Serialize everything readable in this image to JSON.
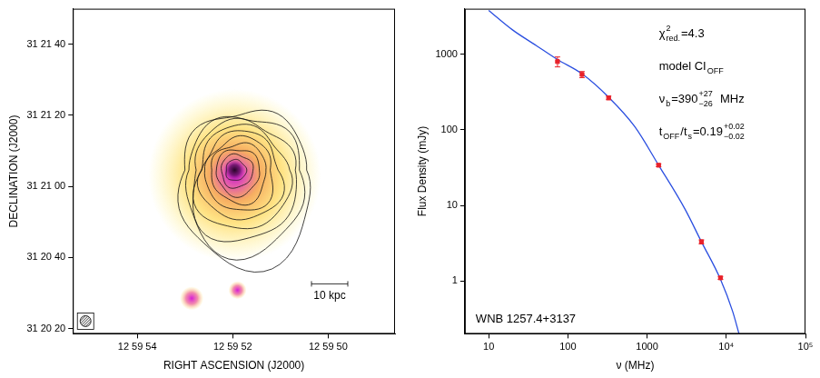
{
  "chart_data": [
    {
      "type": "image",
      "xlabel": "RIGHT ASCENSION (J2000)",
      "ylabel": "DECLINATION (J2000)",
      "xlim": [
        55.35,
        48.6
      ],
      "ylim": [
        18.5,
        110
      ],
      "xticks": [
        {
          "value": 54,
          "label": "12 59 54"
        },
        {
          "value": 52,
          "label": "12 59 52"
        },
        {
          "value": 50,
          "label": "12 59 50"
        }
      ],
      "yticks": [
        {
          "value": 20,
          "label": "31 20 20"
        },
        {
          "value": 40,
          "label": "31 20 40"
        },
        {
          "value": 60,
          "label": "31 21 00"
        },
        {
          "value": 80,
          "label": "31 21 20"
        },
        {
          "value": 100,
          "label": "31 21 40"
        }
      ],
      "sources": [
        {
          "x": 51.96,
          "y": 64.6
        },
        {
          "x": 52.86,
          "y": 28.5
        },
        {
          "x": 51.9,
          "y": 30.8
        }
      ],
      "scale_bar": "10 kpc"
    },
    {
      "type": "line",
      "log": true,
      "grid": false,
      "xlabel": "ν (MHz)",
      "ylabel": "Flux Density (mJy)",
      "xlim": [
        5,
        100000
      ],
      "ylim": [
        0.2,
        4000
      ],
      "xticks": [
        10,
        100,
        1000,
        {
          "value": 10000,
          "label": "10⁴"
        },
        {
          "value": 100000,
          "label": "10⁵"
        }
      ],
      "yticks": [
        1,
        10,
        100,
        1000
      ],
      "series": [
        {
          "type": "scatter",
          "marker": "square",
          "color": "#e8222a",
          "x": [
            74,
            151,
            327,
            1400,
            4860,
            8460
          ],
          "values": [
            800,
            540,
            265,
            34,
            3.3,
            1.1
          ],
          "errors": [
            120,
            50,
            15,
            1.5,
            0.2,
            0.05
          ]
        },
        {
          "type": "line",
          "line_style": "solid",
          "color": "#2b4fe0",
          "x": [
            10,
            20,
            40,
            74,
            151,
            327,
            700,
            1400,
            3000,
            4860,
            8460,
            12000,
            14500
          ],
          "values": [
            3800,
            2100,
            1300,
            850,
            550,
            270,
            110,
            34,
            9,
            3.3,
            1.05,
            0.4,
            0.2
          ]
        }
      ],
      "annotations": [
        [
          {
            "t": "χ"
          },
          {
            "sup": "2",
            "sub": "red."
          },
          {
            "t": "=4.3"
          }
        ],
        [
          {
            "t": "model CI"
          },
          {
            "sub": "OFF"
          }
        ],
        [
          {
            "t": "ν"
          },
          {
            "sub": "b"
          },
          {
            "t": "=390"
          },
          {
            "sup": "+27",
            "sub": "−26"
          },
          {
            "t": "  MHz"
          }
        ],
        [
          {
            "t": "t"
          },
          {
            "sub": "OFF"
          },
          {
            "t": "/t"
          },
          {
            "sub": "s"
          },
          {
            "t": "=0.19"
          },
          {
            "sup": "+0.02",
            "sub": "−0.02"
          }
        ]
      ],
      "caption": "WNB 1257.4+3137"
    }
  ]
}
